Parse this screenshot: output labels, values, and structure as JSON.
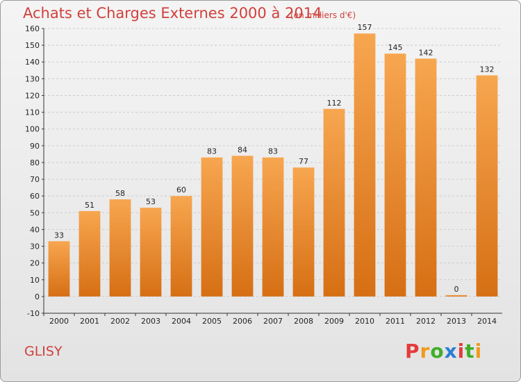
{
  "header": {
    "title": "Achats et Charges Externes 2000 à 2014",
    "unit": "(en milliers d'€)"
  },
  "footer": {
    "city": "GLISY",
    "brand": "Proxiti",
    "brand_colors": [
      "#e33b3b",
      "#f29a1a",
      "#3fae2a",
      "#2a7fd4",
      "#e33b3b",
      "#3fae2a",
      "#f29a1a"
    ]
  },
  "colors": {
    "bar_top": "#f7a650",
    "bar_bottom": "#d66f14",
    "title": "#d0403c",
    "grid": "#cccccc"
  },
  "chart_data": {
    "type": "bar",
    "title": "Achats et Charges Externes 2000 à 2014",
    "xlabel": "",
    "ylabel": "",
    "categories": [
      "2000",
      "2001",
      "2002",
      "2003",
      "2004",
      "2005",
      "2006",
      "2007",
      "2008",
      "2009",
      "2010",
      "2011",
      "2012",
      "2013",
      "2014"
    ],
    "values": [
      33,
      51,
      58,
      53,
      60,
      83,
      84,
      83,
      77,
      112,
      157,
      145,
      142,
      0,
      132
    ],
    "ylim": [
      -10,
      160
    ],
    "yticks": [
      -10,
      0,
      10,
      20,
      30,
      40,
      50,
      60,
      70,
      80,
      90,
      100,
      110,
      120,
      130,
      140,
      150,
      160
    ],
    "grid": true
  }
}
